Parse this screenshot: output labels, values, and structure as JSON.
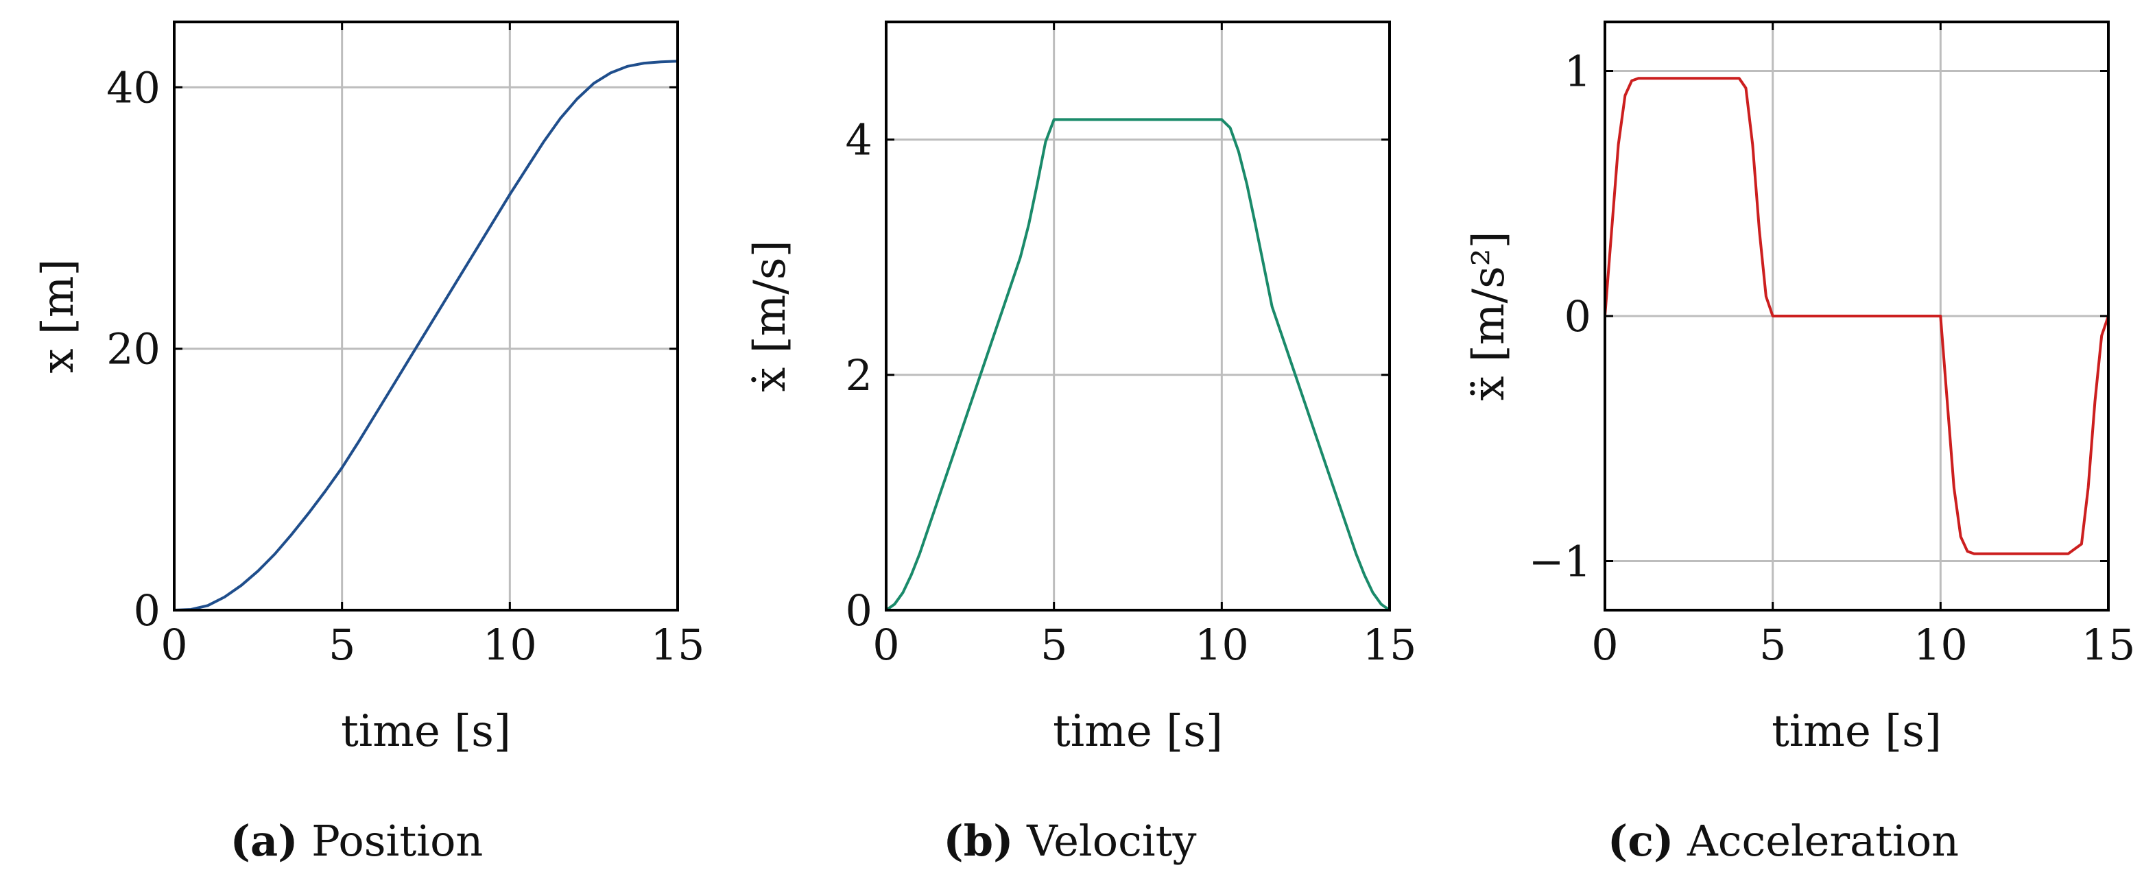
{
  "chart_data": [
    {
      "type": "line",
      "id": "a",
      "xlabel": "time [s]",
      "ylabel": "x [m]",
      "xlim": [
        0,
        15
      ],
      "ylim": [
        0,
        45
      ],
      "xticks": [
        0,
        5,
        10,
        15
      ],
      "xtick_labels": [
        "0",
        "5",
        "10",
        "15"
      ],
      "yticks": [
        0,
        20,
        40
      ],
      "ytick_labels": [
        "0",
        "20",
        "40"
      ],
      "grid": true,
      "color": "#1f4e8c",
      "caption_letter": "(a)",
      "caption_text": " Position",
      "series": [
        {
          "name": "x",
          "x": [
            0,
            0.5,
            1,
            1.5,
            2,
            2.5,
            3,
            3.5,
            4,
            4.5,
            5,
            5.5,
            6,
            6.5,
            7,
            7.5,
            8,
            8.5,
            9,
            9.5,
            10,
            10.5,
            11,
            11.5,
            12,
            12.5,
            13,
            13.5,
            14,
            14.5,
            15
          ],
          "values": [
            0,
            0.05,
            0.35,
            1.0,
            1.9,
            3.0,
            4.3,
            5.8,
            7.4,
            9.1,
            10.9,
            12.9,
            15.0,
            17.1,
            19.2,
            21.3,
            23.4,
            25.5,
            27.6,
            29.7,
            31.8,
            33.8,
            35.8,
            37.6,
            39.1,
            40.3,
            41.1,
            41.6,
            41.85,
            41.95,
            42.0
          ]
        }
      ]
    },
    {
      "type": "line",
      "id": "b",
      "xlabel": "time [s]",
      "ylabel": "ẋ [m/s]",
      "xlim": [
        0,
        15
      ],
      "ylim": [
        0,
        5
      ],
      "xticks": [
        0,
        5,
        10,
        15
      ],
      "xtick_labels": [
        "0",
        "5",
        "10",
        "15"
      ],
      "yticks": [
        0,
        2,
        4
      ],
      "ytick_labels": [
        "0",
        "2",
        "4"
      ],
      "grid": true,
      "color": "#1a8a6a",
      "caption_letter": "(b)",
      "caption_text": " Velocity",
      "series": [
        {
          "name": "velocity",
          "x": [
            0,
            0.25,
            0.5,
            0.75,
            1,
            1.5,
            2,
            2.5,
            3,
            3.5,
            4,
            4.25,
            4.5,
            4.75,
            5,
            6,
            7,
            8,
            9,
            10,
            10.25,
            10.5,
            10.75,
            11,
            11.5,
            12,
            12.5,
            13,
            13.5,
            14,
            14.25,
            14.5,
            14.75,
            15
          ],
          "values": [
            0,
            0.05,
            0.15,
            0.3,
            0.48,
            0.9,
            1.32,
            1.74,
            2.16,
            2.58,
            3.0,
            3.28,
            3.62,
            3.98,
            4.17,
            4.17,
            4.17,
            4.17,
            4.17,
            4.17,
            4.1,
            3.9,
            3.62,
            3.28,
            2.58,
            2.16,
            1.74,
            1.32,
            0.9,
            0.48,
            0.3,
            0.15,
            0.05,
            0
          ]
        }
      ]
    },
    {
      "type": "line",
      "id": "c",
      "xlabel": "time [s]",
      "ylabel": "ẍ [m/s²]",
      "xlim": [
        0,
        15
      ],
      "ylim": [
        -1.2,
        1.2
      ],
      "xticks": [
        0,
        5,
        10,
        15
      ],
      "xtick_labels": [
        "0",
        "5",
        "10",
        "15"
      ],
      "yticks": [
        -1,
        0,
        1
      ],
      "ytick_labels": [
        "−1",
        "0",
        "1"
      ],
      "grid": true,
      "color": "#cc1f1f",
      "caption_letter": "(c)",
      "caption_text": " Acceleration",
      "series": [
        {
          "name": "acceleration",
          "x": [
            0,
            0.2,
            0.4,
            0.6,
            0.8,
            1.0,
            4.0,
            4.2,
            4.4,
            4.6,
            4.8,
            5.0,
            10.0,
            10.2,
            10.4,
            10.6,
            10.8,
            11.0,
            13.8,
            14.0,
            14.2,
            14.4,
            14.6,
            14.8,
            15.0
          ],
          "values": [
            0,
            0.35,
            0.7,
            0.9,
            0.96,
            0.97,
            0.97,
            0.93,
            0.7,
            0.35,
            0.08,
            0,
            0,
            -0.35,
            -0.7,
            -0.9,
            -0.96,
            -0.97,
            -0.97,
            -0.95,
            -0.93,
            -0.7,
            -0.35,
            -0.08,
            0
          ]
        }
      ]
    }
  ]
}
